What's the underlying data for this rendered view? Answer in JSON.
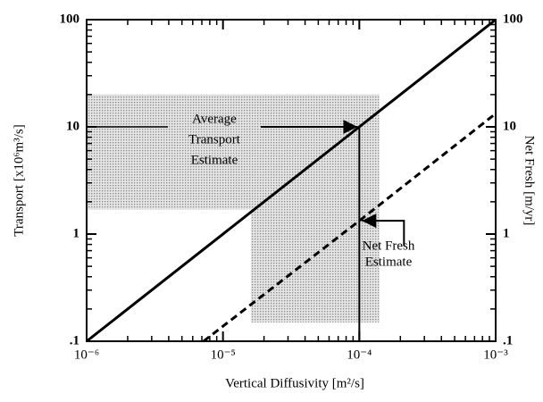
{
  "chart_data": {
    "type": "line",
    "xlabel": "Vertical Diffusivity [m²/s]",
    "ylabel": "Transport [x10⁶m³/s]",
    "y2label": "Net Fresh [m/yr]",
    "xscale": "log",
    "yscale": "log",
    "xlim": [
      1e-06,
      0.001
    ],
    "ylim": [
      0.1,
      100
    ],
    "y2lim": [
      0.1,
      100
    ],
    "xticks": [
      {
        "value": 1e-06,
        "label": "10⁻⁶"
      },
      {
        "value": 1e-05,
        "label": "10⁻⁵"
      },
      {
        "value": 0.0001,
        "label": "10⁻⁴"
      },
      {
        "value": 0.001,
        "label": "10⁻³"
      }
    ],
    "yticks": [
      {
        "value": 0.1,
        "label": ".1"
      },
      1,
      10,
      100
    ],
    "y2ticks": [
      {
        "value": 0.1,
        "label": ".1"
      },
      1,
      10,
      100
    ],
    "series": [
      {
        "name": "Transport",
        "color": "#000000",
        "dash": false,
        "x": [
          1e-06,
          0.001
        ],
        "values": [
          0.1,
          100
        ]
      },
      {
        "name": "Net Fresh",
        "color": "#000000",
        "dash": true,
        "axis": "y2",
        "x": [
          7.2e-06,
          0.0001,
          0.001
        ],
        "values": [
          0.1,
          1.33,
          13.3
        ]
      }
    ],
    "regions": [
      {
        "x": [
          1e-06,
          0.00014
        ],
        "y": [
          1.7,
          20
        ]
      },
      {
        "x": [
          1.6e-05,
          0.00014
        ],
        "y": [
          0.15,
          1.7
        ]
      }
    ],
    "reference_line": {
      "x": 0.0001,
      "y": [
        0.1,
        10
      ]
    },
    "annotations": [
      {
        "lines": [
          "Average",
          "Transport",
          "Estimate"
        ],
        "x": 0.0001,
        "y": 10
      },
      {
        "lines": [
          "Net Fresh",
          "Estimate"
        ],
        "x": 0.0001,
        "y": 1.33
      }
    ]
  }
}
